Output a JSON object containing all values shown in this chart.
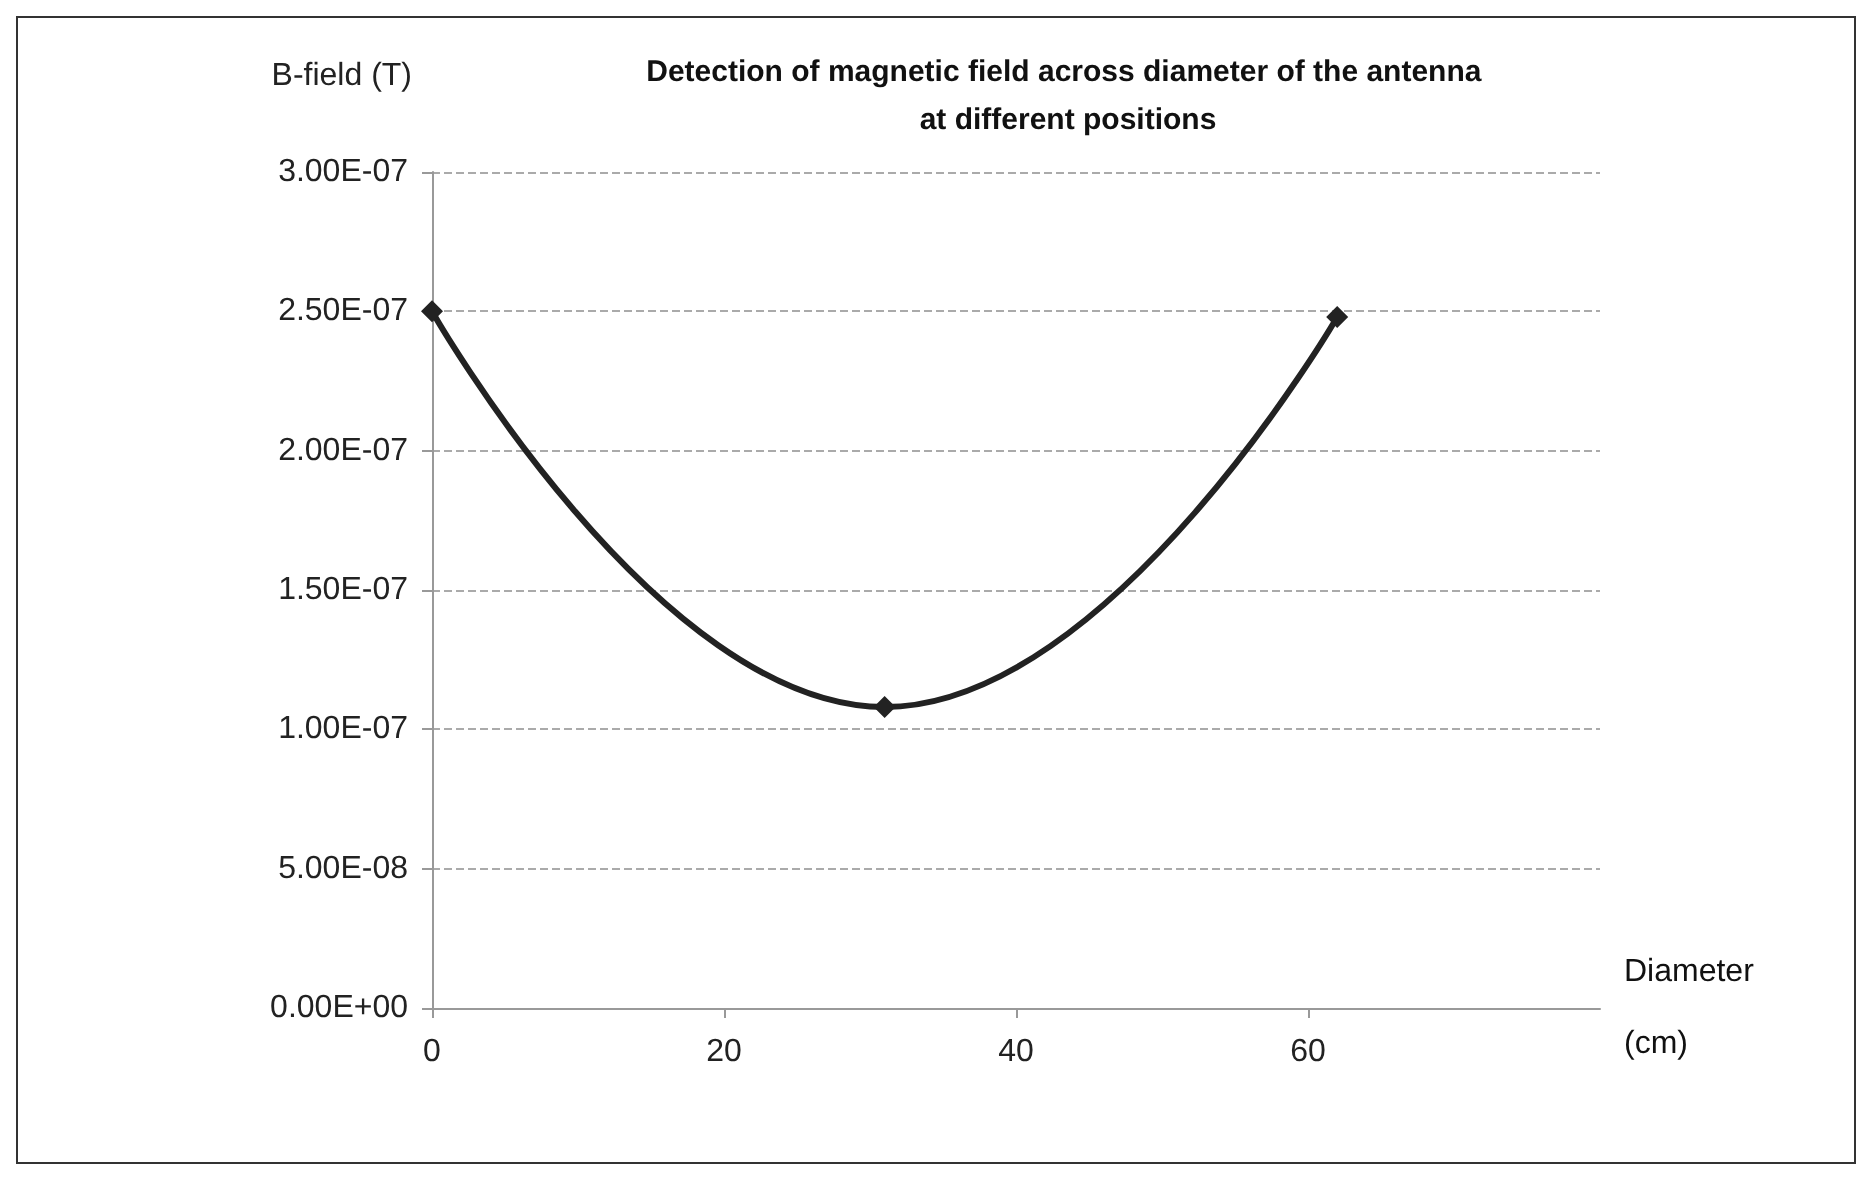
{
  "chart_data": {
    "type": "line",
    "title": "Detection of magnetic field across diameter of the antenna at different positions",
    "xlabel": "Diameter (cm)",
    "ylabel": "B-field (T)",
    "x": [
      0,
      31,
      62
    ],
    "series": [
      {
        "color": "#222222",
        "values": [
          2.5e-07,
          1.08e-07,
          2.48e-07
        ]
      }
    ],
    "xlim": [
      0,
      80
    ],
    "xticks": [
      0,
      20,
      40,
      60
    ],
    "ylim": [
      0,
      3e-07
    ],
    "yticks": [
      {
        "value": 0,
        "label": "0.00E+00"
      },
      {
        "value": 5e-08,
        "label": "5.00E-08"
      },
      {
        "value": 1e-07,
        "label": "1.00E-07"
      },
      {
        "value": 1.5e-07,
        "label": "1.50E-07"
      },
      {
        "value": 2e-07,
        "label": "2.00E-07"
      },
      {
        "value": 2.5e-07,
        "label": "2.50E-07"
      },
      {
        "value": 3e-07,
        "label": "3.00E-07"
      }
    ],
    "grid": "y",
    "marker": "diamond",
    "line_style": "solid"
  }
}
